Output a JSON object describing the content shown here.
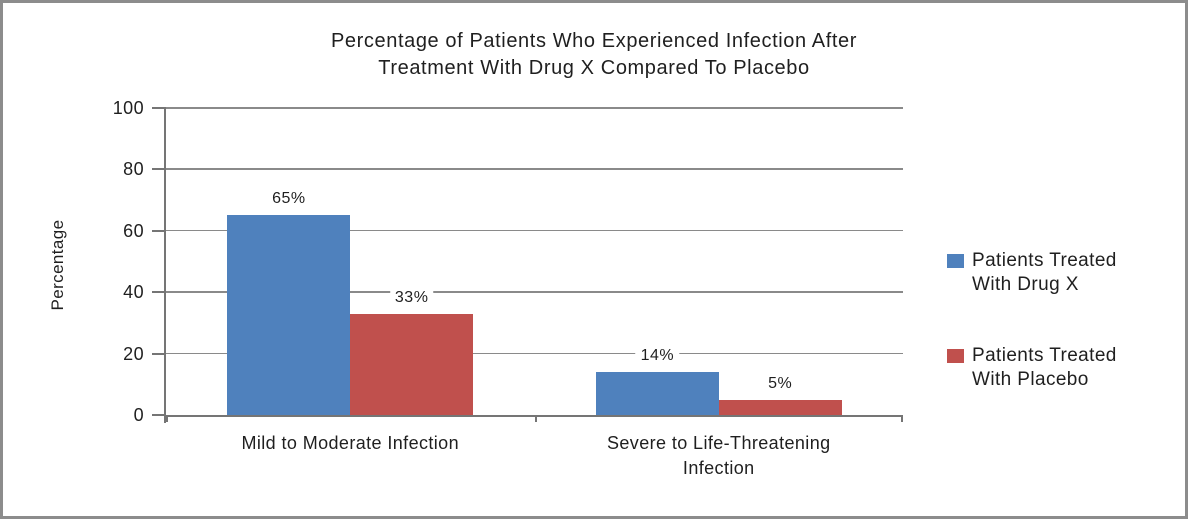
{
  "window": {
    "background": "#ffffff",
    "border_color": "#8c8c8c"
  },
  "chart_data": {
    "type": "bar",
    "title": "Percentage of Patients Who Experienced Infection After Treatment With Drug X Compared To Placebo",
    "title_lines": [
      "Percentage of Patients Who Experienced Infection After",
      "Treatment With Drug X Compared To Placebo"
    ],
    "xlabel": "",
    "ylabel": "Percentage",
    "ylim": [
      0,
      100
    ],
    "yticks": [
      0,
      20,
      40,
      60,
      80,
      100
    ],
    "grid": true,
    "legend_position": "right",
    "categories": [
      "Mild to Moderate Infection",
      "Severe to Life-Threatening Infection"
    ],
    "series": [
      {
        "name": "Patients Treated With Drug X",
        "color": "#4F81BD",
        "values": [
          65,
          14
        ],
        "value_labels": [
          "65%",
          "14%"
        ]
      },
      {
        "name": "Patients Treated With Placebo",
        "color": "#C0504D",
        "values": [
          33,
          5
        ],
        "value_labels": [
          "33%",
          "5%"
        ]
      }
    ],
    "axis_color": "#757575",
    "gridline_color": "#8a8a8a",
    "text_color": "#1f1f1f"
  }
}
